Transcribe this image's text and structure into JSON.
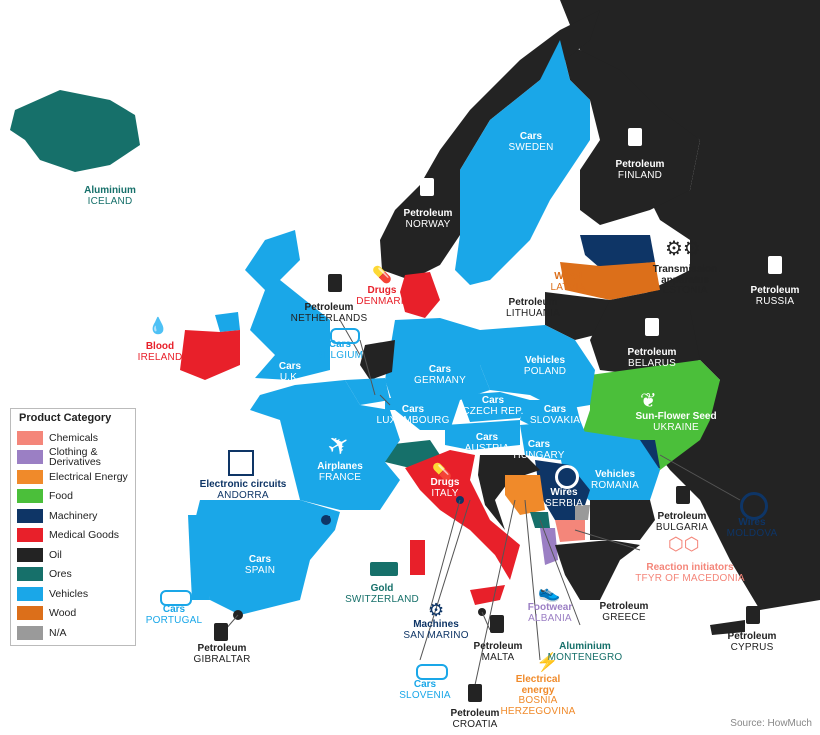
{
  "colors": {
    "Chemicals": "#f4867a",
    "Clothing & Derivatives": "#9b7fc4",
    "Electrical Energy": "#f08a2a",
    "Food": "#4bbf3a",
    "Machinery": "#0e3566",
    "Medical Goods": "#e8202a",
    "Oil": "#232323",
    "Ores": "#16706a",
    "Vehicles": "#1aa7e8",
    "Wood": "#dc6f1a",
    "N/A": "#9a9a9a"
  },
  "legend": {
    "title": "Product Category",
    "items": [
      {
        "label": "Chemicals",
        "color": "#f4867a"
      },
      {
        "label": "Clothing & Derivatives",
        "color": "#9b7fc4"
      },
      {
        "label": "Electrical Energy",
        "color": "#f08a2a"
      },
      {
        "label": "Food",
        "color": "#4bbf3a"
      },
      {
        "label": "Machinery",
        "color": "#0e3566"
      },
      {
        "label": "Medical Goods",
        "color": "#e8202a"
      },
      {
        "label": "Oil",
        "color": "#232323"
      },
      {
        "label": "Ores",
        "color": "#16706a"
      },
      {
        "label": "Vehicles",
        "color": "#1aa7e8"
      },
      {
        "label": "Wood",
        "color": "#dc6f1a"
      },
      {
        "label": "N/A",
        "color": "#9a9a9a"
      }
    ]
  },
  "countries": [
    {
      "id": "iceland",
      "product": "Aluminium",
      "country": "ICELAND",
      "category": "Ores"
    },
    {
      "id": "sweden",
      "product": "Cars",
      "country": "SWEDEN",
      "category": "Vehicles"
    },
    {
      "id": "finland",
      "product": "Petroleum",
      "country": "FINLAND",
      "category": "Oil"
    },
    {
      "id": "norway",
      "product": "Petroleum",
      "country": "NORWAY",
      "category": "Oil"
    },
    {
      "id": "russia",
      "product": "Petroleum",
      "country": "RUSSIA",
      "category": "Oil"
    },
    {
      "id": "latvia",
      "product": "Wood",
      "country": "LATVIA",
      "category": "Wood"
    },
    {
      "id": "estonia",
      "product": "Transmission apparatus",
      "country": "ESTONIA",
      "category": "Machinery"
    },
    {
      "id": "denmark",
      "product": "Drugs",
      "country": "DENMARK",
      "category": "Medical Goods"
    },
    {
      "id": "netherlands",
      "product": "Petroleum",
      "country": "NETHERLANDS",
      "category": "Oil"
    },
    {
      "id": "lithuania",
      "product": "Petroleum",
      "country": "LITHUANIA",
      "category": "Oil"
    },
    {
      "id": "ireland",
      "product": "Blood",
      "country": "IRELAND",
      "category": "Medical Goods"
    },
    {
      "id": "belgium",
      "product": "Cars",
      "country": "BELGIUM",
      "category": "Vehicles"
    },
    {
      "id": "uk",
      "product": "Cars",
      "country": "U.K.",
      "category": "Vehicles"
    },
    {
      "id": "germany",
      "product": "Cars",
      "country": "GERMANY",
      "category": "Vehicles"
    },
    {
      "id": "poland",
      "product": "Vehicles",
      "country": "POLAND",
      "category": "Vehicles"
    },
    {
      "id": "belarus",
      "product": "Petroleum",
      "country": "BELARUS",
      "category": "Oil"
    },
    {
      "id": "czech",
      "product": "Cars",
      "country": "CZECH REP.",
      "category": "Vehicles"
    },
    {
      "id": "luxembourg",
      "product": "Cars",
      "country": "LUXEMBOURG",
      "category": "Vehicles"
    },
    {
      "id": "slovakia",
      "product": "Cars",
      "country": "SLOVAKIA",
      "category": "Vehicles"
    },
    {
      "id": "austria",
      "product": "Cars",
      "country": "AUSTRIA",
      "category": "Vehicles"
    },
    {
      "id": "hungary",
      "product": "Cars",
      "country": "HUNGARY",
      "category": "Vehicles"
    },
    {
      "id": "ukraine",
      "product": "Sun-Flower Seed",
      "country": "UKRAINE",
      "category": "Food"
    },
    {
      "id": "france",
      "product": "Airplanes",
      "country": "FRANCE",
      "category": "Vehicles"
    },
    {
      "id": "andorra",
      "product": "Electronic circuits",
      "country": "ANDORRA",
      "category": "Machinery"
    },
    {
      "id": "italy",
      "product": "Drugs",
      "country": "ITALY",
      "category": "Medical Goods"
    },
    {
      "id": "romania",
      "product": "Vehicles",
      "country": "ROMANIA",
      "category": "Vehicles"
    },
    {
      "id": "serbia",
      "product": "Wires",
      "country": "SERBIA",
      "category": "Machinery"
    },
    {
      "id": "moldova",
      "product": "Wires",
      "country": "MOLDOVA",
      "category": "Machinery"
    },
    {
      "id": "bulgaria",
      "product": "Petroleum",
      "country": "BULGARIA",
      "category": "Oil"
    },
    {
      "id": "macedonia",
      "product": "Reaction initiators",
      "country": "TFYR OF MACEDONIA",
      "category": "Chemicals"
    },
    {
      "id": "spain",
      "product": "Cars",
      "country": "SPAIN",
      "category": "Vehicles"
    },
    {
      "id": "switzerland",
      "product": "Gold",
      "country": "SWITZERLAND",
      "category": "Ores"
    },
    {
      "id": "portugal",
      "product": "Cars",
      "country": "PORTUGAL",
      "category": "Vehicles"
    },
    {
      "id": "gibraltar",
      "product": "Petroleum",
      "country": "GIBRALTAR",
      "category": "Oil"
    },
    {
      "id": "sanmarino",
      "product": "Machines",
      "country": "SAN MARINO",
      "category": "Machinery"
    },
    {
      "id": "malta",
      "product": "Petroleum",
      "country": "MALTA",
      "category": "Oil"
    },
    {
      "id": "albania",
      "product": "Footwear",
      "country": "ALBANIA",
      "category": "Clothing & Derivatives"
    },
    {
      "id": "greece",
      "product": "Petroleum",
      "country": "GREECE",
      "category": "Oil"
    },
    {
      "id": "montenegro",
      "product": "Aluminium",
      "country": "MONTENEGRO",
      "category": "Ores"
    },
    {
      "id": "cyprus",
      "product": "Petroleum",
      "country": "CYPRUS",
      "category": "Oil"
    },
    {
      "id": "slovenia",
      "product": "Cars",
      "country": "SLOVENIA",
      "category": "Vehicles"
    },
    {
      "id": "bosnia",
      "product": "Electrical energy",
      "country": "BOSNIA HERZEGOVINA",
      "category": "Electrical Energy"
    },
    {
      "id": "croatia",
      "product": "Petroleum",
      "country": "CROATIA",
      "category": "Oil"
    }
  ],
  "source": "Source: HowMuch"
}
